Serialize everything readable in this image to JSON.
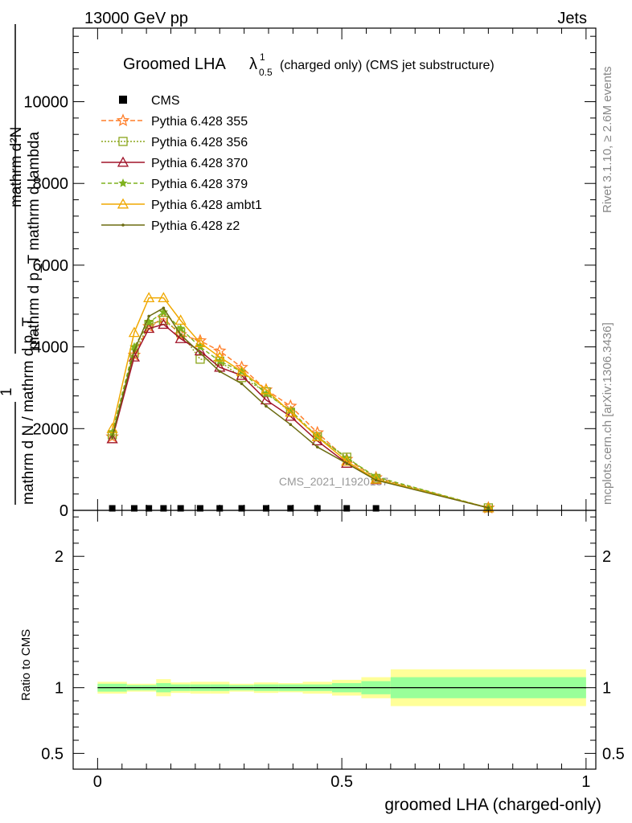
{
  "header": {
    "left": "13000 GeV pp",
    "right": "Jets"
  },
  "side_labels": {
    "rivet": "Rivet 3.1.10, ≥ 2.6M events",
    "mcplots": "mcplots.cern.ch [arXiv:1306.3436]"
  },
  "watermark": "CMS_2021_I1920187",
  "chart_data": [
    {
      "type": "line",
      "title_main": "Groomed LHA ",
      "title_lambda": "λ",
      "title_sup": "1",
      "title_sub": "0.5",
      "title_suffix": " (charged only) (CMS jet substructure)",
      "ylabel_one": "1",
      "ylabel_den": "mathrm d N / mathrm d p_T",
      "ylabel_num_1": "mathrm d²N",
      "ylabel_num_2": "mathrm d p_T mathrm d lambda",
      "xlim": [
        -0.05,
        1.02
      ],
      "ylim": [
        0,
        11800
      ],
      "yticks": [
        0,
        2000,
        4000,
        6000,
        8000,
        10000
      ],
      "ytick_labels": [
        "0",
        "2000",
        "4000",
        "6000",
        "8000",
        "10000"
      ],
      "x": [
        0.03,
        0.075,
        0.105,
        0.135,
        0.17,
        0.21,
        0.25,
        0.295,
        0.345,
        0.395,
        0.45,
        0.51,
        0.57,
        0.8
      ],
      "cms": {
        "name": "CMS",
        "color": "#000000",
        "values": [
          10,
          10,
          10,
          10,
          10,
          10,
          10,
          10,
          10,
          10,
          10,
          10,
          10,
          null
        ]
      },
      "series": [
        {
          "name": "Pythia 6.428 355",
          "color": "#ff7f2a",
          "dash": "6,3",
          "marker": "star-open",
          "values": [
            1800,
            3800,
            4500,
            4700,
            4300,
            4150,
            3900,
            3500,
            2950,
            2550,
            1900,
            1250,
            800,
            60
          ]
        },
        {
          "name": "Pythia 6.428 356",
          "color": "#8aa51a",
          "dash": "2,2",
          "marker": "square-open",
          "values": [
            1850,
            3850,
            4550,
            4650,
            4350,
            3700,
            3650,
            3250,
            2900,
            2400,
            1800,
            1300,
            780,
            60
          ]
        },
        {
          "name": "Pythia 6.428 370",
          "color": "#a0142a",
          "dash": "",
          "marker": "triangle-open",
          "values": [
            1750,
            3750,
            4450,
            4550,
            4200,
            3900,
            3500,
            3300,
            2700,
            2300,
            1700,
            1150,
            750,
            60
          ]
        },
        {
          "name": "Pythia 6.428 379",
          "color": "#7fb21e",
          "dash": "5,3",
          "marker": "star-filled",
          "values": [
            1900,
            4000,
            4600,
            4850,
            4450,
            4000,
            3650,
            3400,
            2850,
            2450,
            1800,
            1280,
            820,
            60
          ]
        },
        {
          "name": "Pythia 6.428 ambt1",
          "color": "#f0a800",
          "dash": "",
          "marker": "triangle-open",
          "values": [
            2000,
            4350,
            5200,
            5200,
            4650,
            4100,
            3750,
            3400,
            2950,
            2400,
            1800,
            1200,
            760,
            60
          ]
        },
        {
          "name": "Pythia 6.428 z2",
          "color": "#6b6b10",
          "dash": "",
          "marker": "dot",
          "values": [
            1800,
            3900,
            4750,
            4950,
            4300,
            3850,
            3400,
            3100,
            2550,
            2100,
            1550,
            1150,
            740,
            60
          ]
        }
      ]
    },
    {
      "type": "area",
      "ylabel": "Ratio to CMS",
      "xlabel": "groomed LHA (charged-only)",
      "xlim": [
        -0.05,
        1.02
      ],
      "ylim": [
        0.38,
        2.35
      ],
      "yticks": [
        0.5,
        1,
        2
      ],
      "ytick_labels": [
        "0.5",
        "1",
        "2"
      ],
      "xticks": [
        0,
        0.5,
        1
      ],
      "xtick_labels": [
        "0",
        "0.5",
        "1"
      ],
      "band_bins": [
        {
          "x0": 0.0,
          "x1": 0.06,
          "yellow": 0.045,
          "green": 0.03
        },
        {
          "x0": 0.06,
          "x1": 0.09,
          "yellow": 0.03,
          "green": 0.02
        },
        {
          "x0": 0.09,
          "x1": 0.12,
          "yellow": 0.03,
          "green": 0.02
        },
        {
          "x0": 0.12,
          "x1": 0.15,
          "yellow": 0.065,
          "green": 0.035
        },
        {
          "x0": 0.15,
          "x1": 0.19,
          "yellow": 0.04,
          "green": 0.025
        },
        {
          "x0": 0.19,
          "x1": 0.23,
          "yellow": 0.045,
          "green": 0.025
        },
        {
          "x0": 0.23,
          "x1": 0.27,
          "yellow": 0.045,
          "green": 0.025
        },
        {
          "x0": 0.27,
          "x1": 0.32,
          "yellow": 0.03,
          "green": 0.02
        },
        {
          "x0": 0.32,
          "x1": 0.37,
          "yellow": 0.04,
          "green": 0.025
        },
        {
          "x0": 0.37,
          "x1": 0.42,
          "yellow": 0.035,
          "green": 0.025
        },
        {
          "x0": 0.42,
          "x1": 0.48,
          "yellow": 0.045,
          "green": 0.025
        },
        {
          "x0": 0.48,
          "x1": 0.54,
          "yellow": 0.06,
          "green": 0.035
        },
        {
          "x0": 0.54,
          "x1": 0.6,
          "yellow": 0.08,
          "green": 0.05
        },
        {
          "x0": 0.6,
          "x1": 1.0,
          "yellow": 0.14,
          "green": 0.08
        }
      ],
      "band_colors": {
        "outer": "#ffff99",
        "inner": "#99ff99"
      }
    }
  ]
}
